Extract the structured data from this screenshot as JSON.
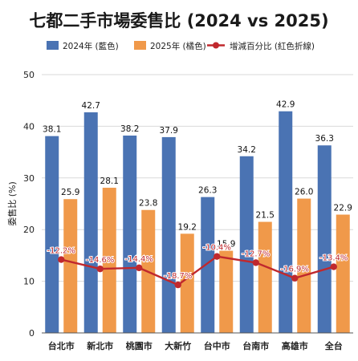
{
  "chart_data": {
    "type": "bar",
    "title": "七都二手市場委售比 (2024 vs 2025)",
    "ylabel": "委售比 (%)",
    "xlabel": "",
    "ylim": [
      0,
      50
    ],
    "yticks": [
      0,
      10,
      20,
      30,
      40,
      50
    ],
    "grid": true,
    "legend_position": "top",
    "categories": [
      "台北市",
      "新北市",
      "桃園市",
      "大新竹",
      "台中市",
      "台南市",
      "高雄市",
      "全台"
    ],
    "series": [
      {
        "name": "2024年 (藍色)",
        "kind": "bar",
        "color": "#4a73b3",
        "values": [
          38.1,
          42.7,
          38.2,
          37.9,
          26.3,
          34.2,
          42.9,
          36.3
        ],
        "labels": [
          "38.1",
          "42.7",
          "38.2",
          "37.9",
          "26.3",
          "34.2",
          "42.9",
          "36.3"
        ]
      },
      {
        "name": "2025年 (橘色)",
        "kind": "bar",
        "color": "#f0994a",
        "values": [
          25.9,
          28.1,
          23.8,
          19.2,
          15.9,
          21.5,
          26.0,
          22.9
        ],
        "labels": [
          "25.9",
          "28.1",
          "23.8",
          "19.2",
          "15.9",
          "21.5",
          "26.0",
          "22.9"
        ]
      },
      {
        "name": "增減百分比 (紅色折線)",
        "kind": "line",
        "color": "#c0282d",
        "values": [
          14.2,
          12.4,
          12.6,
          9.3,
          14.8,
          13.6,
          10.6,
          12.8
        ],
        "labels": [
          "-12.2%",
          "-14.6%",
          "-14.4%",
          "-18.7%",
          "-10.4%",
          "-12.7%",
          "-16.9%",
          "-13.4%"
        ]
      }
    ]
  }
}
